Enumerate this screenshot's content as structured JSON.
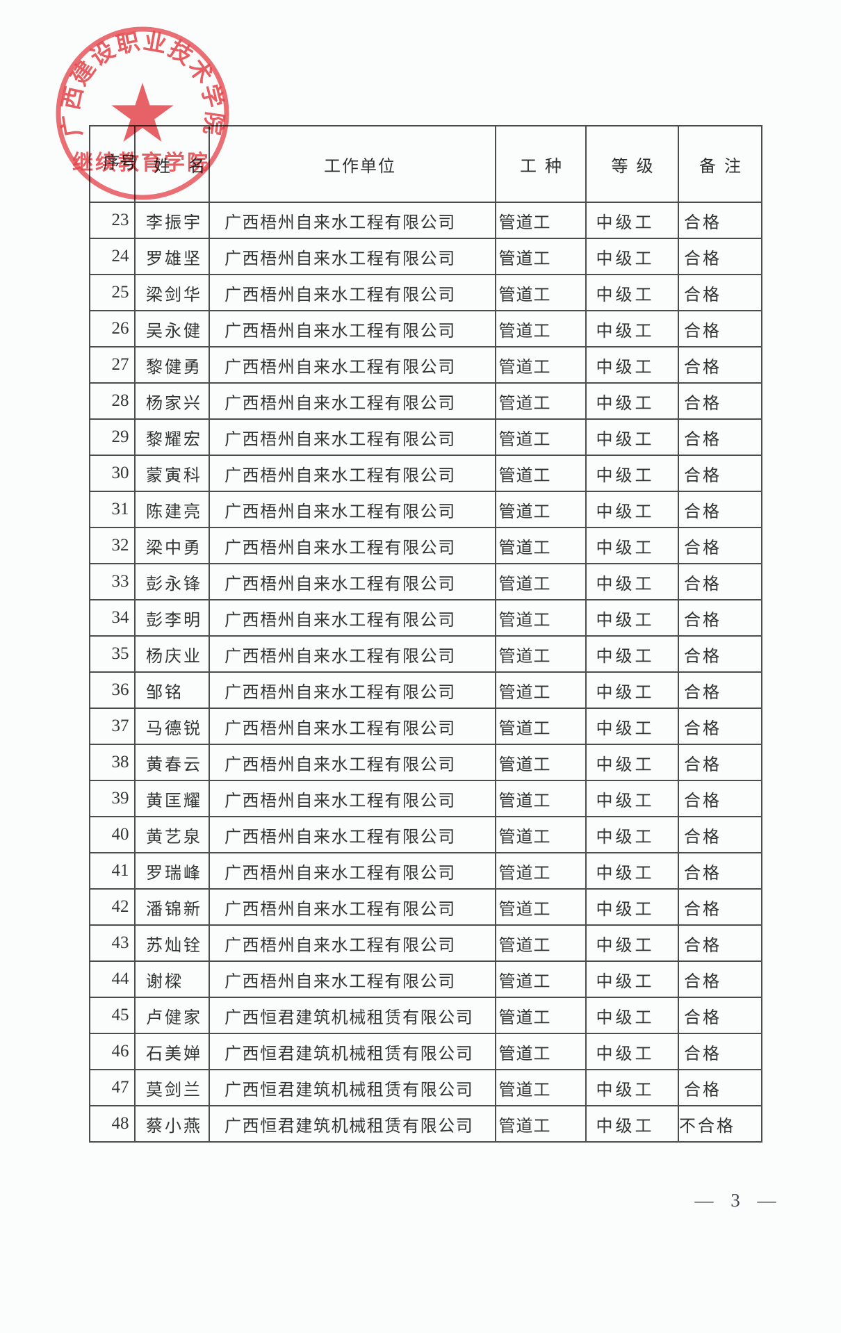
{
  "page": {
    "page_number": "— 3 —"
  },
  "stamp": {
    "arc_text": "广西建设职业技术学院",
    "bottom_text": "继续教育学院",
    "color": "#e8484e"
  },
  "table": {
    "headers": {
      "no": "序号",
      "name": "姓名",
      "employer": "工作单位",
      "trade": "工种",
      "grade": "等级",
      "remark": "备注"
    },
    "rows": [
      {
        "no": "23",
        "name": "李振宇",
        "employer": "广西梧州自来水工程有限公司",
        "trade": "管道工",
        "grade": "中级工",
        "remark": "合格"
      },
      {
        "no": "24",
        "name": "罗雄坚",
        "employer": "广西梧州自来水工程有限公司",
        "trade": "管道工",
        "grade": "中级工",
        "remark": "合格"
      },
      {
        "no": "25",
        "name": "梁剑华",
        "employer": "广西梧州自来水工程有限公司",
        "trade": "管道工",
        "grade": "中级工",
        "remark": "合格"
      },
      {
        "no": "26",
        "name": "吴永健",
        "employer": "广西梧州自来水工程有限公司",
        "trade": "管道工",
        "grade": "中级工",
        "remark": "合格"
      },
      {
        "no": "27",
        "name": "黎健勇",
        "employer": "广西梧州自来水工程有限公司",
        "trade": "管道工",
        "grade": "中级工",
        "remark": "合格"
      },
      {
        "no": "28",
        "name": "杨家兴",
        "employer": "广西梧州自来水工程有限公司",
        "trade": "管道工",
        "grade": "中级工",
        "remark": "合格"
      },
      {
        "no": "29",
        "name": "黎耀宏",
        "employer": "广西梧州自来水工程有限公司",
        "trade": "管道工",
        "grade": "中级工",
        "remark": "合格"
      },
      {
        "no": "30",
        "name": "蒙寅科",
        "employer": "广西梧州自来水工程有限公司",
        "trade": "管道工",
        "grade": "中级工",
        "remark": "合格"
      },
      {
        "no": "31",
        "name": "陈建亮",
        "employer": "广西梧州自来水工程有限公司",
        "trade": "管道工",
        "grade": "中级工",
        "remark": "合格"
      },
      {
        "no": "32",
        "name": "梁中勇",
        "employer": "广西梧州自来水工程有限公司",
        "trade": "管道工",
        "grade": "中级工",
        "remark": "合格"
      },
      {
        "no": "33",
        "name": "彭永锋",
        "employer": "广西梧州自来水工程有限公司",
        "trade": "管道工",
        "grade": "中级工",
        "remark": "合格"
      },
      {
        "no": "34",
        "name": "彭李明",
        "employer": "广西梧州自来水工程有限公司",
        "trade": "管道工",
        "grade": "中级工",
        "remark": "合格"
      },
      {
        "no": "35",
        "name": "杨庆业",
        "employer": "广西梧州自来水工程有限公司",
        "trade": "管道工",
        "grade": "中级工",
        "remark": "合格"
      },
      {
        "no": "36",
        "name": "邹铭",
        "employer": "广西梧州自来水工程有限公司",
        "trade": "管道工",
        "grade": "中级工",
        "remark": "合格"
      },
      {
        "no": "37",
        "name": "马德锐",
        "employer": "广西梧州自来水工程有限公司",
        "trade": "管道工",
        "grade": "中级工",
        "remark": "合格"
      },
      {
        "no": "38",
        "name": "黄春云",
        "employer": "广西梧州自来水工程有限公司",
        "trade": "管道工",
        "grade": "中级工",
        "remark": "合格"
      },
      {
        "no": "39",
        "name": "黄匡耀",
        "employer": "广西梧州自来水工程有限公司",
        "trade": "管道工",
        "grade": "中级工",
        "remark": "合格"
      },
      {
        "no": "40",
        "name": "黄艺泉",
        "employer": "广西梧州自来水工程有限公司",
        "trade": "管道工",
        "grade": "中级工",
        "remark": "合格"
      },
      {
        "no": "41",
        "name": "罗瑞峰",
        "employer": "广西梧州自来水工程有限公司",
        "trade": "管道工",
        "grade": "中级工",
        "remark": "合格"
      },
      {
        "no": "42",
        "name": "潘锦新",
        "employer": "广西梧州自来水工程有限公司",
        "trade": "管道工",
        "grade": "中级工",
        "remark": "合格"
      },
      {
        "no": "43",
        "name": "苏灿铨",
        "employer": "广西梧州自来水工程有限公司",
        "trade": "管道工",
        "grade": "中级工",
        "remark": "合格"
      },
      {
        "no": "44",
        "name": "谢樑",
        "employer": "广西梧州自来水工程有限公司",
        "trade": "管道工",
        "grade": "中级工",
        "remark": "合格"
      },
      {
        "no": "45",
        "name": "卢健家",
        "employer": "广西恒君建筑机械租赁有限公司",
        "trade": "管道工",
        "grade": "中级工",
        "remark": "合格"
      },
      {
        "no": "46",
        "name": "石美婵",
        "employer": "广西恒君建筑机械租赁有限公司",
        "trade": "管道工",
        "grade": "中级工",
        "remark": "合格"
      },
      {
        "no": "47",
        "name": "莫剑兰",
        "employer": "广西恒君建筑机械租赁有限公司",
        "trade": "管道工",
        "grade": "中级工",
        "remark": "合格"
      },
      {
        "no": "48",
        "name": "蔡小燕",
        "employer": "广西恒君建筑机械租赁有限公司",
        "trade": "管道工",
        "grade": "中级工",
        "remark": "不合格"
      }
    ]
  }
}
